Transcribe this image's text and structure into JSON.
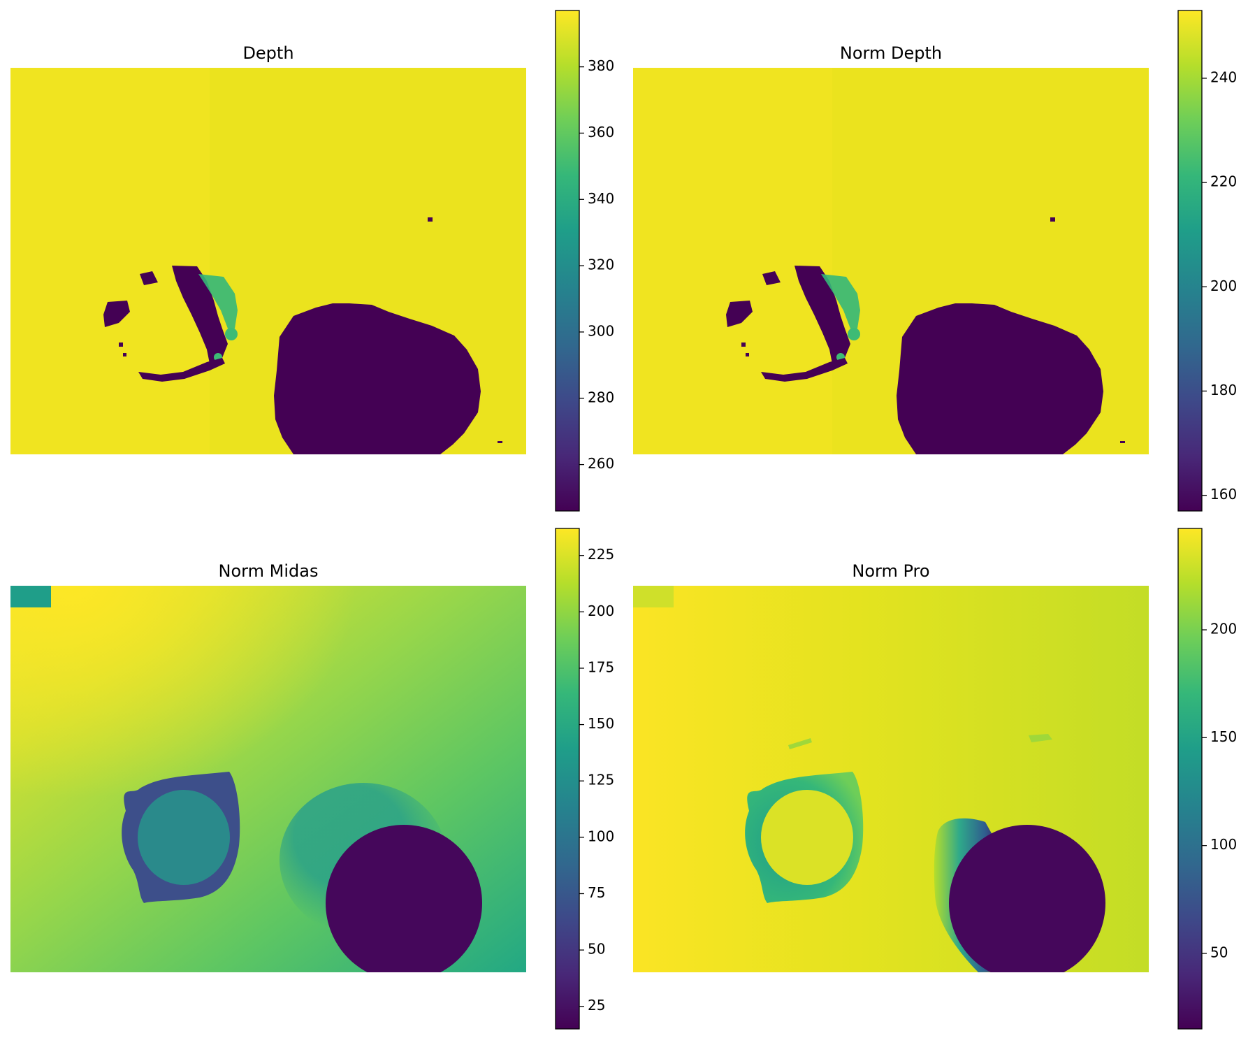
{
  "chart_data": [
    {
      "type": "heatmap",
      "title": "Depth",
      "colormap": "viridis",
      "colorbar": {
        "range": [
          246,
          397
        ],
        "ticks": [
          260,
          280,
          300,
          320,
          340,
          360,
          380
        ]
      }
    },
    {
      "type": "heatmap",
      "title": "Norm Depth",
      "colormap": "viridis",
      "colorbar": {
        "range": [
          157,
          253
        ],
        "ticks": [
          160,
          180,
          200,
          220,
          240
        ]
      }
    },
    {
      "type": "heatmap",
      "title": "Norm Midas",
      "colormap": "viridis",
      "colorbar": {
        "range": [
          15,
          237
        ],
        "ticks": [
          25,
          50,
          75,
          100,
          125,
          150,
          175,
          200,
          225
        ]
      }
    },
    {
      "type": "heatmap",
      "title": "Norm Pro",
      "colormap": "viridis",
      "colorbar": {
        "range": [
          15,
          247
        ],
        "ticks": [
          50,
          100,
          150,
          200
        ]
      }
    }
  ],
  "colors": {
    "viridis_stops": [
      "#440154",
      "#482878",
      "#3e4989",
      "#31688e",
      "#26828e",
      "#1f9e89",
      "#35b779",
      "#6ece58",
      "#b5de2b",
      "#fde725"
    ]
  }
}
